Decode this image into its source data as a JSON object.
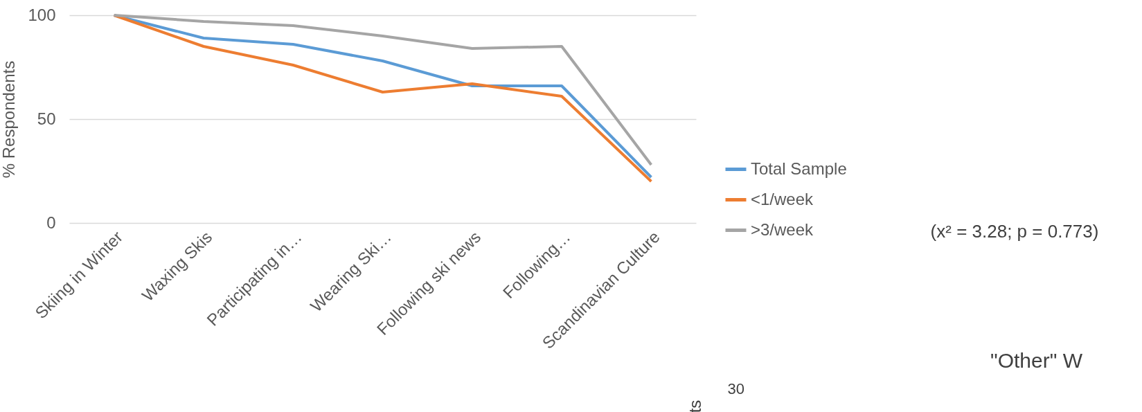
{
  "chart_data": {
    "type": "line",
    "categories": [
      "Skiing in Winter",
      "Waxing Skis",
      "Participating in…",
      "Wearing Ski…",
      "Following ski news",
      "Following…",
      "Scandinavian Culture"
    ],
    "series": [
      {
        "name": "Total Sample",
        "color": "#5b9bd5",
        "values": [
          100,
          89,
          86,
          78,
          66,
          66,
          22
        ]
      },
      {
        "name": "<1/week",
        "color": "#ed7d31",
        "values": [
          100,
          85,
          76,
          63,
          67,
          61,
          20
        ]
      },
      {
        "name": ">3/week",
        "color": "#a5a5a5",
        "values": [
          100,
          97,
          95,
          90,
          84,
          85,
          28
        ]
      }
    ],
    "ylabel": "% Respondents",
    "ylim": [
      0,
      100
    ],
    "yticks": [
      0,
      50,
      100
    ],
    "grid": "y",
    "legend": "right",
    "marker": "none",
    "line_style": "solid",
    "annotations": [
      "(x² = 3.28; p = 0.773)",
      "\"Other\" W",
      "30",
      "ts"
    ]
  }
}
